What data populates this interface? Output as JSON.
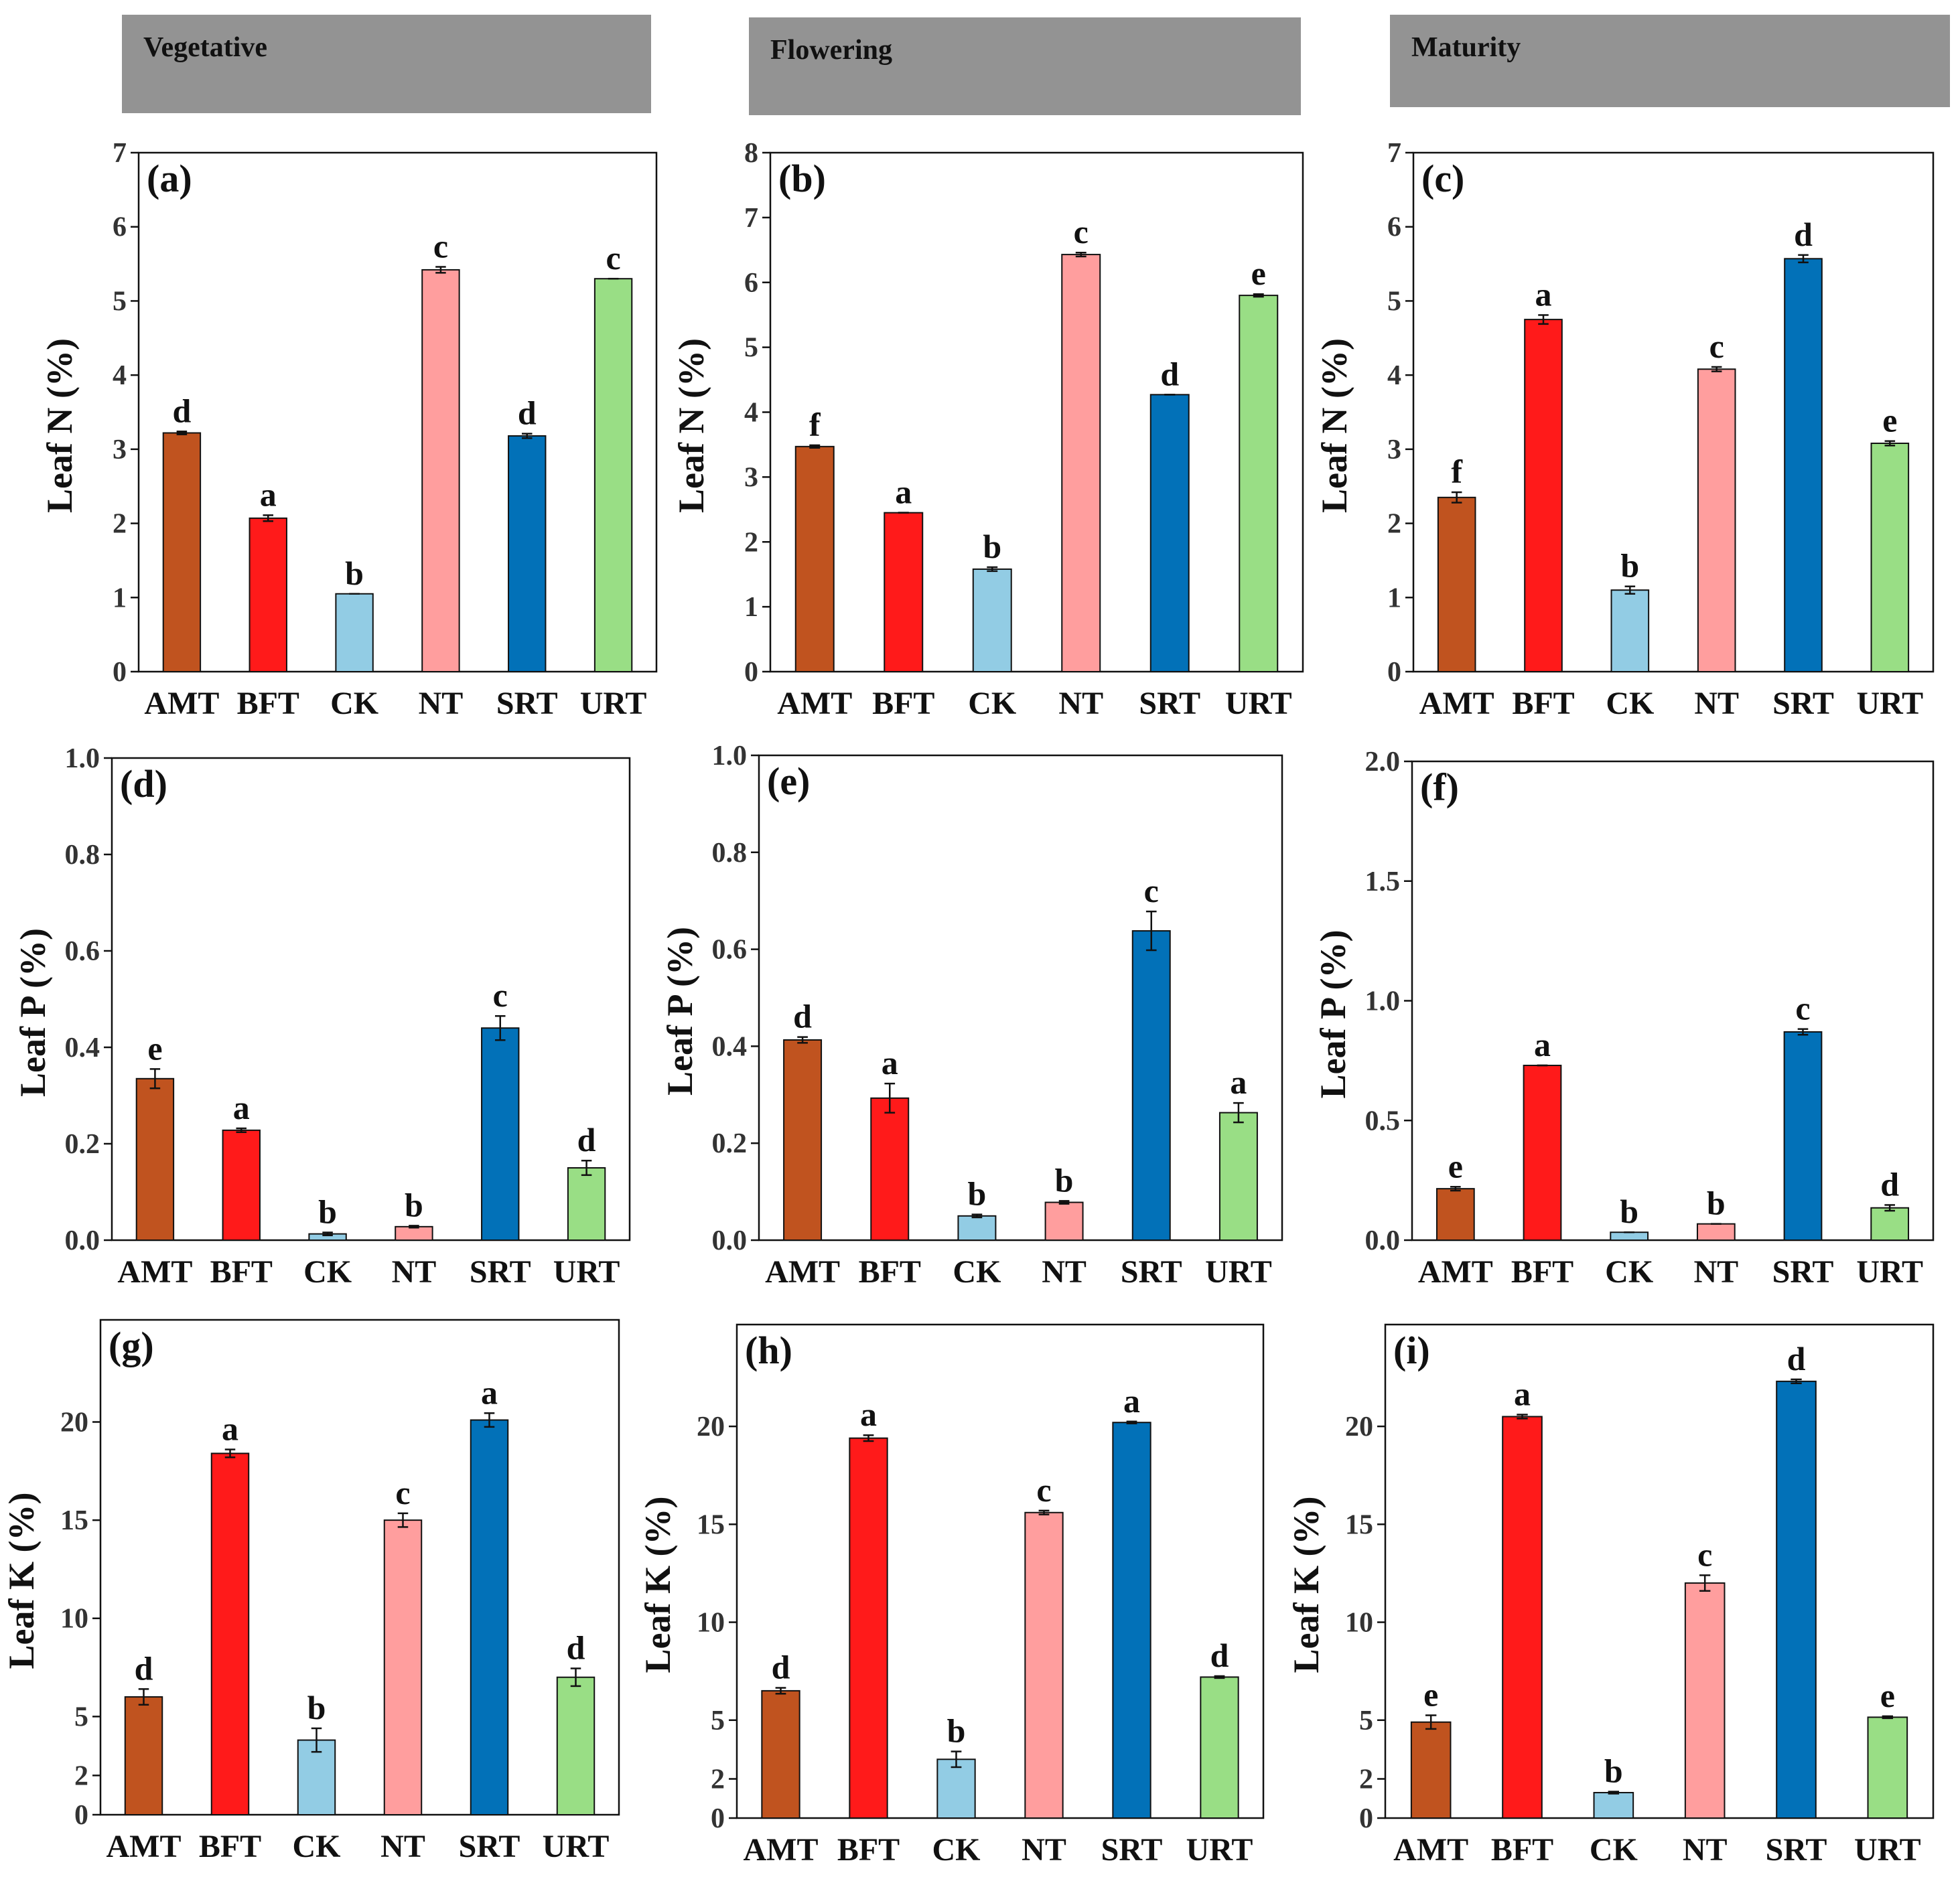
{
  "headers": [
    "Vegetative",
    "Flowering",
    "Maturity"
  ],
  "treatments": [
    "AMT",
    "BFT",
    "CK",
    "NT",
    "SRT",
    "URT"
  ],
  "colors": {
    "AMT": "#c0531f",
    "BFT": "#ff1a1a",
    "CK": "#92cce4",
    "NT": "#ff9e9e",
    "SRT": "#0271b8",
    "URT": "#99de85",
    "header_bg": "#939393",
    "ink": "#111111"
  },
  "chart_data": [
    {
      "type": "bar",
      "panel": "(a)",
      "title": "",
      "ylabel": "Leaf  N  (%)",
      "xlabel": "",
      "ylim": [
        0,
        7
      ],
      "yticks": [
        "0",
        "1",
        "2",
        "3",
        "4",
        "5",
        "6",
        "7"
      ],
      "categories": [
        "AMT",
        "BFT",
        "CK",
        "NT",
        "SRT",
        "URT"
      ],
      "values": [
        3.22,
        2.07,
        1.05,
        5.42,
        3.18,
        5.3
      ],
      "errors": [
        0.02,
        0.04,
        0.0,
        0.04,
        0.03,
        0.0
      ],
      "letters": [
        "d",
        "a",
        "b",
        "c",
        "d",
        "c"
      ]
    },
    {
      "type": "bar",
      "panel": "(b)",
      "title": "",
      "ylabel": "Leaf  N  (%)",
      "xlabel": "",
      "ylim": [
        0,
        8
      ],
      "yticks": [
        "0",
        "1",
        "2",
        "3",
        "4",
        "5",
        "6",
        "7",
        "8"
      ],
      "categories": [
        "AMT",
        "BFT",
        "CK",
        "NT",
        "SRT",
        "URT"
      ],
      "values": [
        3.47,
        2.45,
        1.58,
        6.43,
        4.27,
        5.8
      ],
      "errors": [
        0.02,
        0.0,
        0.03,
        0.03,
        0.0,
        0.02
      ],
      "letters": [
        "f",
        "a",
        "b",
        "c",
        "d",
        "e"
      ]
    },
    {
      "type": "bar",
      "panel": "(c)",
      "title": "",
      "ylabel": "Leaf  N  (%)",
      "xlabel": "",
      "ylim": [
        0,
        7
      ],
      "yticks": [
        "0",
        "1",
        "2",
        "3",
        "4",
        "5",
        "6",
        "7"
      ],
      "categories": [
        "AMT",
        "BFT",
        "CK",
        "NT",
        "SRT",
        "URT"
      ],
      "values": [
        2.35,
        4.75,
        1.1,
        4.08,
        5.57,
        3.08
      ],
      "errors": [
        0.07,
        0.06,
        0.05,
        0.03,
        0.05,
        0.03
      ],
      "letters": [
        "f",
        "a",
        "b",
        "c",
        "d",
        "e"
      ]
    },
    {
      "type": "bar",
      "panel": "(d)",
      "title": "",
      "ylabel": "Leaf P (%)",
      "xlabel": "",
      "ylim": [
        0,
        1.0
      ],
      "yticks": [
        "0.0",
        "0.2",
        "0.4",
        "0.6",
        "0.8",
        "1.0"
      ],
      "categories": [
        "AMT",
        "BFT",
        "CK",
        "NT",
        "SRT",
        "URT"
      ],
      "values": [
        0.335,
        0.228,
        0.013,
        0.028,
        0.44,
        0.15
      ],
      "errors": [
        0.02,
        0.004,
        0.003,
        0.002,
        0.025,
        0.015
      ],
      "letters": [
        "e",
        "a",
        "b",
        "b",
        "c",
        "d"
      ]
    },
    {
      "type": "bar",
      "panel": "(e)",
      "title": "",
      "ylabel": "Leaf P (%)",
      "xlabel": "",
      "ylim": [
        0,
        1.0
      ],
      "yticks": [
        "0.0",
        "0.2",
        "0.4",
        "0.6",
        "0.8",
        "1.0"
      ],
      "categories": [
        "AMT",
        "BFT",
        "CK",
        "NT",
        "SRT",
        "URT"
      ],
      "values": [
        0.413,
        0.293,
        0.05,
        0.078,
        0.638,
        0.263
      ],
      "errors": [
        0.006,
        0.03,
        0.003,
        0.003,
        0.04,
        0.02
      ],
      "letters": [
        "d",
        "a",
        "b",
        "b",
        "c",
        "a"
      ]
    },
    {
      "type": "bar",
      "panel": "(f)",
      "title": "",
      "ylabel": "Leaf P (%)",
      "xlabel": "",
      "ylim": [
        0,
        2.0
      ],
      "yticks": [
        "0.0",
        "0.5",
        "1.0",
        "1.5",
        "2.0"
      ],
      "categories": [
        "AMT",
        "BFT",
        "CK",
        "NT",
        "SRT",
        "URT"
      ],
      "values": [
        0.215,
        0.73,
        0.033,
        0.068,
        0.87,
        0.135
      ],
      "errors": [
        0.008,
        0.0,
        0.0,
        0.0,
        0.012,
        0.012
      ],
      "letters": [
        "e",
        "a",
        "b",
        "b",
        "c",
        "d"
      ]
    },
    {
      "type": "bar",
      "panel": "(g)",
      "title": "",
      "ylabel": "Leaf K (%)",
      "xlabel": "",
      "ylim": [
        0,
        25.2
      ],
      "yticks": [
        "0",
        "2",
        "5",
        "10",
        "15",
        "20"
      ],
      "ytick_values": [
        0,
        2,
        5,
        10,
        15,
        20
      ],
      "categories": [
        "AMT",
        "BFT",
        "CK",
        "NT",
        "SRT",
        "URT"
      ],
      "values": [
        6.0,
        18.4,
        3.8,
        15.0,
        20.1,
        7.0
      ],
      "errors": [
        0.4,
        0.2,
        0.6,
        0.35,
        0.35,
        0.45
      ],
      "letters": [
        "d",
        "a",
        "b",
        "c",
        "a",
        "d"
      ]
    },
    {
      "type": "bar",
      "panel": "(h)",
      "title": "",
      "ylabel": "Leaf K (%)",
      "xlabel": "",
      "ylim": [
        0,
        25.2
      ],
      "yticks": [
        "0",
        "2",
        "5",
        "10",
        "15",
        "20"
      ],
      "ytick_values": [
        0,
        2,
        5,
        10,
        15,
        20
      ],
      "categories": [
        "AMT",
        "BFT",
        "CK",
        "NT",
        "SRT",
        "URT"
      ],
      "values": [
        6.5,
        19.4,
        3.0,
        15.6,
        20.2,
        7.2
      ],
      "errors": [
        0.15,
        0.15,
        0.4,
        0.1,
        0.05,
        0.05
      ],
      "letters": [
        "d",
        "a",
        "b",
        "c",
        "a",
        "d"
      ]
    },
    {
      "type": "bar",
      "panel": "(i)",
      "title": "",
      "ylabel": "Leaf K (%)",
      "xlabel": "",
      "ylim": [
        0,
        25.2
      ],
      "yticks": [
        "0",
        "2",
        "5",
        "10",
        "15",
        "20"
      ],
      "ytick_values": [
        0,
        2,
        5,
        10,
        15,
        20
      ],
      "categories": [
        "AMT",
        "BFT",
        "CK",
        "NT",
        "SRT",
        "URT"
      ],
      "values": [
        4.9,
        20.5,
        1.3,
        12.0,
        22.3,
        5.15
      ],
      "errors": [
        0.35,
        0.1,
        0.05,
        0.4,
        0.1,
        0.05
      ],
      "letters": [
        "e",
        "a",
        "b",
        "c",
        "d",
        "e"
      ]
    }
  ]
}
